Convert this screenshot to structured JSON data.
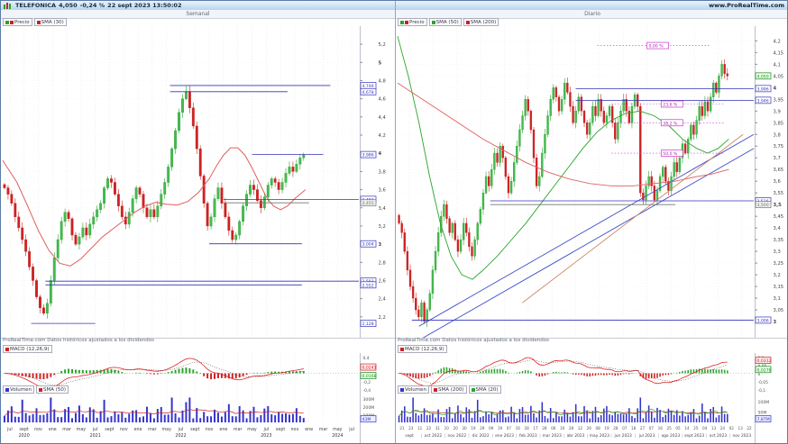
{
  "titlebar": {
    "symbol": "TELEFONICA",
    "price": "4,050",
    "change": "-0,24 %",
    "datetime": "22 sept 2023 13:50:02",
    "site": "www.ProRealTime.com"
  },
  "colors": {
    "up": "#2aa42a",
    "down": "#cc2222",
    "volume": "#3333cc",
    "level": "#3333bb",
    "fib": "#cc33cc",
    "macd_line": "#dd2222",
    "signal": "#222222",
    "grid": "#e4e7ec"
  },
  "left": {
    "title": "Semanal",
    "note": "ProRealTime.com   Datos históricos ajustados a los dividendos",
    "price_legend": [
      {
        "label": "Precio",
        "colors": [
          "#2aa42a",
          "#cc2222"
        ]
      },
      {
        "label": "SMA (30)",
        "colors": [
          "#cc2222"
        ]
      }
    ],
    "macd_legend": [
      {
        "label": "MACD (12,26,9)",
        "colors": [
          "#cc2222"
        ]
      }
    ],
    "vol_legend": [
      {
        "label": "Volumen",
        "colors": [
          "#3333cc"
        ]
      },
      {
        "label": "SMA (50)",
        "colors": [
          "#cc2222"
        ]
      }
    ],
    "chart_data": {
      "type": "candlestick-weekly",
      "y_range": [
        2.02,
        5.34
      ],
      "data_frac": 0.85,
      "wick": 0.055,
      "ticks": [
        "5,2",
        "5",
        "4,8",
        "4,6",
        "4,4",
        "4,2",
        "4",
        "3,8",
        "3,6",
        "3,4",
        "3,2",
        "3",
        "2,8",
        "2,6",
        "2,4",
        "2,2"
      ],
      "bold_ticks": [
        "5",
        "4",
        "3"
      ],
      "closes": [
        3.62,
        3.55,
        3.45,
        3.3,
        3.18,
        3.05,
        2.92,
        2.75,
        2.6,
        2.42,
        2.3,
        2.24,
        2.35,
        2.6,
        2.85,
        3.05,
        3.25,
        3.35,
        3.28,
        3.1,
        3.0,
        3.08,
        3.18,
        3.1,
        3.22,
        3.3,
        3.38,
        3.45,
        3.62,
        3.72,
        3.68,
        3.55,
        3.42,
        3.3,
        3.22,
        3.35,
        3.5,
        3.62,
        3.55,
        3.4,
        3.3,
        3.38,
        3.3,
        3.42,
        3.55,
        3.68,
        3.85,
        4.05,
        4.25,
        4.45,
        4.6,
        4.68,
        4.5,
        4.3,
        4.05,
        3.75,
        3.45,
        3.2,
        3.3,
        3.5,
        3.62,
        3.45,
        3.3,
        3.15,
        3.05,
        3.1,
        3.25,
        3.42,
        3.55,
        3.65,
        3.6,
        3.48,
        3.4,
        3.52,
        3.65,
        3.72,
        3.68,
        3.6,
        3.68,
        3.78,
        3.85,
        3.8,
        3.88,
        3.95,
        3.98
      ],
      "smas": [
        {
          "color": "#e06060",
          "w": 1.0,
          "path": [
            [
              0,
              3.92
            ],
            [
              0.04,
              3.68
            ],
            [
              0.07,
              3.42
            ],
            [
              0.1,
              3.15
            ],
            [
              0.13,
              2.93
            ],
            [
              0.16,
              2.79
            ],
            [
              0.19,
              2.76
            ],
            [
              0.22,
              2.84
            ],
            [
              0.25,
              2.96
            ],
            [
              0.28,
              3.08
            ],
            [
              0.31,
              3.17
            ],
            [
              0.34,
              3.26
            ],
            [
              0.37,
              3.35
            ],
            [
              0.4,
              3.42
            ],
            [
              0.43,
              3.46
            ],
            [
              0.46,
              3.44
            ],
            [
              0.49,
              3.43
            ],
            [
              0.52,
              3.47
            ],
            [
              0.55,
              3.57
            ],
            [
              0.58,
              3.72
            ],
            [
              0.6,
              3.86
            ],
            [
              0.62,
              3.98
            ],
            [
              0.64,
              4.06
            ],
            [
              0.66,
              4.06
            ],
            [
              0.68,
              3.98
            ],
            [
              0.7,
              3.84
            ],
            [
              0.72,
              3.68
            ],
            [
              0.74,
              3.52
            ],
            [
              0.76,
              3.42
            ],
            [
              0.78,
              3.38
            ],
            [
              0.8,
              3.42
            ],
            [
              0.82,
              3.5
            ],
            [
              0.85,
              3.6
            ]
          ]
        }
      ],
      "levels": [
        {
          "label": "4,746",
          "x0": 0.47,
          "x1": 0.92
        },
        {
          "label": "4,678",
          "x0": 0.47,
          "x1": 0.8
        },
        {
          "label": "3,986",
          "x0": 0.7,
          "x1": 0.9
        },
        {
          "label": "3,493",
          "x0": 0.62,
          "x1": 1.0
        },
        {
          "label": "3,455",
          "x0": 0.62,
          "x1": 0.86,
          "style": "gray"
        },
        {
          "label": "3,004",
          "x0": 0.58,
          "x1": 0.84
        },
        {
          "label": "2,593",
          "x0": 0.12,
          "x1": 1.0
        },
        {
          "label": "2,552",
          "x0": 0.12,
          "x1": 0.84
        },
        {
          "label": "2,128",
          "x0": 0.08,
          "x1": 0.26
        }
      ],
      "trendlines": [],
      "fibs": [],
      "macd_ticks": [
        "0,4",
        "0,2",
        "0",
        "-0,2",
        "-0,4"
      ],
      "macd_tags": {
        "line": "0,0241",
        "signal": "0,0168"
      },
      "vol_ticks": [
        {
          "label": "300M",
          "f": 0.18
        },
        {
          "label": "200M",
          "f": 0.45
        },
        {
          "label": "100M",
          "f": 0.72
        }
      ],
      "vol_tag": "43M",
      "vol_spikes": [
        13,
        47,
        52
      ],
      "x_months": [
        {
          "m": "jul"
        },
        {
          "m": "sept",
          "y": "2020"
        },
        {
          "m": "nov"
        },
        {
          "m": "ene"
        },
        {
          "m": "mar"
        },
        {
          "m": "may"
        },
        {
          "m": "jul",
          "y": "2021"
        },
        {
          "m": "sept"
        },
        {
          "m": "nov"
        },
        {
          "m": "ene"
        },
        {
          "m": "mar"
        },
        {
          "m": "may"
        },
        {
          "m": "jul",
          "y": "2022"
        },
        {
          "m": "sept"
        },
        {
          "m": "nov"
        },
        {
          "m": "ene"
        },
        {
          "m": "mar"
        },
        {
          "m": "may"
        },
        {
          "m": "jul",
          "y": "2023"
        },
        {
          "m": "sept"
        },
        {
          "m": "nov"
        },
        {
          "m": "ene"
        },
        {
          "m": "mar"
        },
        {
          "m": "may",
          "y": "2024"
        },
        {
          "m": "jul"
        }
      ],
      "x_days": []
    }
  },
  "right": {
    "title": "Diario",
    "note": "ProRealTime.com   Datos históricos ajustados a los dividendos",
    "price_legend": [
      {
        "label": "Precio",
        "colors": [
          "#2aa42a",
          "#cc2222"
        ]
      },
      {
        "label": "SMA (50)",
        "colors": [
          "#2aa42a"
        ]
      },
      {
        "label": "SMA (200)",
        "colors": [
          "#cc2222"
        ]
      }
    ],
    "macd_legend": [
      {
        "label": "MACD (12,26,9)",
        "colors": [
          "#cc2222"
        ]
      }
    ],
    "vol_legend": [
      {
        "label": "Volumen",
        "colors": [
          "#3333cc"
        ]
      },
      {
        "label": "SMA (200)",
        "colors": [
          "#cc2222"
        ]
      },
      {
        "label": "SMA (20)",
        "colors": [
          "#2aa42a"
        ]
      }
    ],
    "chart_data": {
      "type": "candlestick-daily",
      "y_range": [
        2.95,
        4.24
      ],
      "data_frac": 0.93,
      "wick": 0.022,
      "ticks": [
        "4,2",
        "4,15",
        "4,1",
        "4,05",
        "4",
        "3,95",
        "3,9",
        "3,85",
        "3,8",
        "3,75",
        "3,7",
        "3,65",
        "3,6",
        "3,55",
        "3,5",
        "3,45",
        "3,4",
        "3,35",
        "3,3",
        "3,25",
        "3,2",
        "3,15",
        "3,1",
        "3,05",
        "3"
      ],
      "bold_ticks": [
        "4",
        "3,5",
        "3"
      ],
      "closes": [
        3.42,
        3.38,
        3.3,
        3.22,
        3.15,
        3.1,
        3.05,
        3.02,
        3.08,
        3.0,
        3.05,
        3.12,
        3.22,
        3.3,
        3.38,
        3.45,
        3.5,
        3.44,
        3.38,
        3.42,
        3.35,
        3.3,
        3.35,
        3.42,
        3.38,
        3.32,
        3.28,
        3.35,
        3.42,
        3.48,
        3.55,
        3.62,
        3.58,
        3.65,
        3.72,
        3.68,
        3.75,
        3.7,
        3.62,
        3.55,
        3.6,
        3.68,
        3.75,
        3.82,
        3.88,
        3.95,
        3.9,
        3.82,
        3.7,
        3.58,
        3.62,
        3.72,
        3.8,
        3.88,
        3.95,
        4.0,
        3.96,
        3.9,
        3.95,
        4.02,
        3.98,
        3.92,
        3.85,
        3.9,
        3.96,
        3.9,
        3.85,
        3.8,
        3.85,
        3.92,
        3.88,
        3.95,
        3.9,
        3.85,
        3.88,
        3.92,
        3.85,
        3.78,
        3.85,
        3.9,
        3.95,
        3.9,
        3.85,
        3.92,
        3.97,
        3.92,
        3.55,
        3.52,
        3.58,
        3.62,
        3.58,
        3.52,
        3.56,
        3.62,
        3.66,
        3.6,
        3.56,
        3.62,
        3.68,
        3.64,
        3.7,
        3.76,
        3.72,
        3.78,
        3.84,
        3.8,
        3.86,
        3.92,
        3.88,
        3.94,
        3.9,
        3.96,
        4.02,
        3.98,
        4.05,
        4.1,
        4.06,
        4.05
      ],
      "smas": [
        {
          "color": "#2aa42a",
          "w": 0.9,
          "path": [
            [
              0,
              4.22
            ],
            [
              0.03,
              4.05
            ],
            [
              0.06,
              3.85
            ],
            [
              0.09,
              3.62
            ],
            [
              0.12,
              3.42
            ],
            [
              0.15,
              3.28
            ],
            [
              0.18,
              3.2
            ],
            [
              0.21,
              3.18
            ],
            [
              0.24,
              3.22
            ],
            [
              0.28,
              3.28
            ],
            [
              0.32,
              3.35
            ],
            [
              0.36,
              3.42
            ],
            [
              0.4,
              3.5
            ],
            [
              0.44,
              3.58
            ],
            [
              0.48,
              3.66
            ],
            [
              0.52,
              3.74
            ],
            [
              0.56,
              3.81
            ],
            [
              0.6,
              3.86
            ],
            [
              0.64,
              3.89
            ],
            [
              0.68,
              3.9
            ],
            [
              0.72,
              3.88
            ],
            [
              0.76,
              3.84
            ],
            [
              0.8,
              3.78
            ],
            [
              0.84,
              3.74
            ],
            [
              0.87,
              3.72
            ],
            [
              0.9,
              3.74
            ],
            [
              0.93,
              3.78
            ]
          ]
        },
        {
          "color": "#e06060",
          "w": 0.9,
          "path": [
            [
              0,
              4.02
            ],
            [
              0.06,
              3.96
            ],
            [
              0.12,
              3.9
            ],
            [
              0.18,
              3.84
            ],
            [
              0.24,
              3.78
            ],
            [
              0.3,
              3.73
            ],
            [
              0.36,
              3.68
            ],
            [
              0.42,
              3.64
            ],
            [
              0.48,
              3.61
            ],
            [
              0.54,
              3.59
            ],
            [
              0.6,
              3.58
            ],
            [
              0.66,
              3.58
            ],
            [
              0.72,
              3.59
            ],
            [
              0.78,
              3.6
            ],
            [
              0.84,
              3.62
            ],
            [
              0.88,
              3.63
            ],
            [
              0.93,
              3.65
            ]
          ]
        }
      ],
      "levels": [
        {
          "label": "3,996",
          "x0": 0.5,
          "x1": 1.0
        },
        {
          "label": "3,946",
          "x0": 0.5,
          "x1": 1.0
        },
        {
          "label": "3,516",
          "x0": 0.26,
          "x1": 1.0
        },
        {
          "label": "3,500",
          "x0": 0.26,
          "x1": 0.78,
          "style": "gray"
        },
        {
          "label": "3,006",
          "x0": 0.04,
          "x1": 1.0
        }
      ],
      "trendlines": [
        {
          "x0": 0.06,
          "p0": 2.98,
          "x1": 1.0,
          "p1": 3.8,
          "color": "#3b4cc8"
        },
        {
          "x0": 0.06,
          "p0": 2.92,
          "x1": 1.0,
          "p1": 3.74,
          "color": "#3b4cc8"
        },
        {
          "x0": 0.35,
          "p0": 3.08,
          "x1": 0.97,
          "p1": 3.8,
          "color": "#cc8866"
        }
      ],
      "fibs": [
        {
          "label": "0,00 %",
          "price": 4.18,
          "bx": 0.7
        },
        {
          "label": "23,6 %",
          "price": 3.93,
          "bx": 0.74
        },
        {
          "label": "38,2 %",
          "price": 3.85,
          "bx": 0.74
        },
        {
          "label": "50,0 %",
          "price": 3.72,
          "bx": 0.74
        }
      ],
      "last_tag": {
        "label": "4,050",
        "price": 4.05,
        "color": "#1a8a1a"
      },
      "macd_ticks": [
        "0,1",
        "0,05",
        "0",
        "-0,05",
        "-0,1"
      ],
      "macd_tags": {
        "line": "0,0312",
        "signal": "0,0278"
      },
      "vol_ticks": [
        {
          "label": "100M",
          "f": 0.28
        },
        {
          "label": "50M",
          "f": 0.62
        }
      ],
      "vol_tag": "7,87M",
      "vol_spikes": [
        5,
        86
      ],
      "x_months": [
        {
          "m": "sept"
        },
        {
          "m": "oct 2022"
        },
        {
          "m": "nov 2022"
        },
        {
          "m": "dic 2022"
        },
        {
          "m": "ene 2023"
        },
        {
          "m": "feb 2023"
        },
        {
          "m": "mar 2023"
        },
        {
          "m": "abr 2023"
        },
        {
          "m": "may 2023"
        },
        {
          "m": "jun 2023"
        },
        {
          "m": "jul 2023"
        },
        {
          "m": "ago 2023"
        },
        {
          "m": "sept 2023"
        },
        {
          "m": "oct 2023"
        },
        {
          "m": "nov 2023"
        }
      ],
      "x_days": [
        "21",
        "23",
        "11",
        "22",
        "31",
        "10",
        "20",
        "30",
        "19",
        "29",
        "09",
        "19",
        "07",
        "16",
        "28",
        "17",
        "28",
        "06",
        "16",
        "28",
        "12",
        "26",
        "08",
        "19",
        "28",
        "07",
        "18",
        "27",
        "07",
        "16",
        "25",
        "05",
        "14",
        "25",
        "04",
        "13",
        "24",
        "02",
        "13",
        "22"
      ]
    }
  }
}
